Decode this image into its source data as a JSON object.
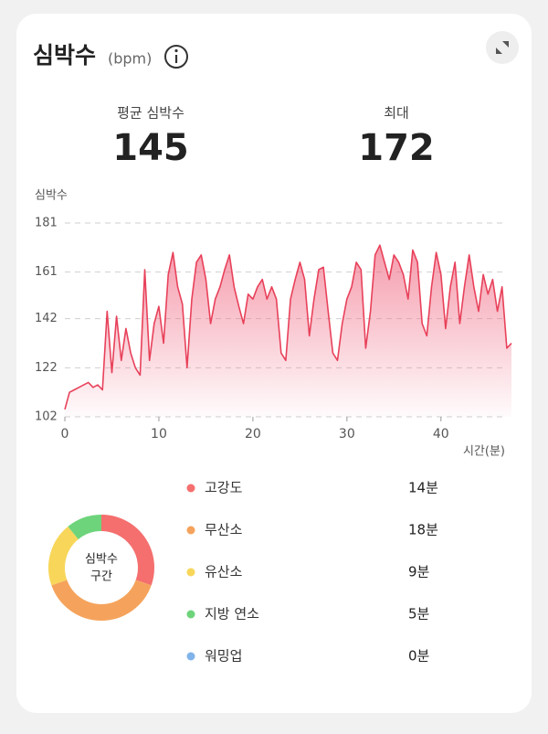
{
  "header": {
    "title": "심박수",
    "unit": "(bpm)"
  },
  "stats": [
    {
      "label": "평균 심박수",
      "value": 145
    },
    {
      "label": "최대",
      "value": 172
    }
  ],
  "chart_data": [
    {
      "type": "line",
      "y_label": "심박수",
      "x_label": "시간(분)",
      "color": "#e8415a",
      "x": [
        0,
        0.5,
        1,
        1.5,
        2,
        2.5,
        3,
        3.5,
        4,
        4.5,
        5,
        5.5,
        6,
        6.5,
        7,
        7.5,
        8,
        8.5,
        9,
        9.5,
        10,
        10.5,
        11,
        11.5,
        12,
        12.5,
        13,
        13.5,
        14,
        14.5,
        15,
        15.5,
        16,
        16.5,
        17,
        17.5,
        18,
        18.5,
        19,
        19.5,
        20,
        20.5,
        21,
        21.5,
        22,
        22.5,
        23,
        23.5,
        24,
        24.5,
        25,
        25.5,
        26,
        26.5,
        27,
        27.5,
        28,
        28.5,
        29,
        29.5,
        30,
        30.5,
        31,
        31.5,
        32,
        32.5,
        33,
        33.5,
        34,
        34.5,
        35,
        35.5,
        36,
        36.5,
        37,
        37.5,
        38,
        38.5,
        39,
        39.5,
        40,
        40.5,
        41,
        41.5,
        42,
        42.5,
        43,
        43.5,
        44,
        44.5,
        45,
        45.5,
        46,
        46.5,
        47,
        47.5
      ],
      "values": [
        105,
        112,
        113,
        114,
        115,
        116,
        114,
        115,
        113,
        145,
        120,
        143,
        125,
        138,
        128,
        122,
        119,
        162,
        125,
        140,
        147,
        132,
        160,
        169,
        155,
        148,
        122,
        150,
        165,
        168,
        158,
        140,
        150,
        155,
        162,
        168,
        155,
        147,
        140,
        152,
        150,
        155,
        158,
        150,
        155,
        150,
        128,
        125,
        150,
        158,
        165,
        158,
        135,
        150,
        162,
        163,
        145,
        128,
        125,
        140,
        150,
        155,
        165,
        162,
        130,
        145,
        168,
        172,
        165,
        158,
        168,
        165,
        160,
        150,
        170,
        165,
        140,
        135,
        155,
        169,
        160,
        138,
        155,
        165,
        140,
        155,
        168,
        155,
        145,
        160,
        152,
        158,
        145,
        155,
        130,
        132
      ],
      "xlim": [
        0,
        47.5
      ],
      "xticks": [
        0,
        10,
        20,
        30,
        40
      ],
      "ylim": [
        102,
        181
      ],
      "yticks": [
        102,
        122,
        142,
        161,
        181
      ],
      "grid": true
    },
    {
      "type": "pie",
      "center_label": [
        "심박수",
        "구간"
      ],
      "categories": [
        "고강도",
        "무산소",
        "유산소",
        "지방 연소",
        "워밍업"
      ],
      "values": [
        14,
        18,
        9,
        5,
        0
      ],
      "value_labels": [
        "14분",
        "18분",
        "9분",
        "5분",
        "0분"
      ],
      "colors": [
        "#f46f6e",
        "#f5a35c",
        "#f7d65a",
        "#6dd47b",
        "#80b3ea"
      ]
    }
  ]
}
